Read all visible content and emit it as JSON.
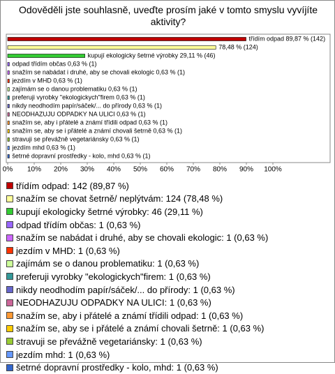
{
  "chart_data": {
    "type": "hbar",
    "title": "Odověděli jste souhlasně, uveďte prosím jaké v tomto smyslu vyvíjíte aktivity?",
    "categories": [
      "třídím odpad",
      "snažím se chovat šetrně/ neplýtvám",
      "kupují ekologicky šetrné výrobky",
      "odpad třídím občas",
      "snažím se nabádat i druhé, aby se chovali ekologic",
      "jezdím v MHD",
      "zajímám se o danou problematiku",
      "preferuji vyrobky \"ekologickych\"firem",
      "nikdy neodhodím papír/sáček/... do přírody",
      "NEODHAZUJU ODPADKY NA ULICI",
      "snažím se, aby i přátelé a známí třídili odpad",
      "snažím se, aby se i přátelé a známí chovali šetrně",
      "stravuji se převážně vegetariánsky",
      "jezdím mhd",
      "šetrné dopravní prostředky - kolo, mhd"
    ],
    "values": [
      89.87,
      78.48,
      29.11,
      0.63,
      0.63,
      0.63,
      0.63,
      0.63,
      0.63,
      0.63,
      0.63,
      0.63,
      0.63,
      0.63,
      0.63
    ],
    "value_labels": [
      "třídím odpad 89,87 % (142)",
      "78,48 % (124)",
      "kupují ekologicky šetrné výrobky 29,11 % (46)",
      "odpad třídím občas 0,63 % (1)",
      "snažím se nabádat i druhé, aby se chovali ekologic 0,63 % (1)",
      "jezdím v MHD 0,63 % (1)",
      "zajímám se o danou problematiku 0,63 % (1)",
      "preferuji vyrobky \"ekologickych\"firem 0,63 % (1)",
      "nikdy neodhodím papír/sáček/... do přírody 0,63 % (1)",
      "NEODHAZUJU ODPADKY NA ULICI 0,63 % (1)",
      "snažím se, aby i přátelé a známí třídili odpad 0,63 % (1)",
      "snažím se, aby se i přátelé a známí chovali šetrně 0,63 % (1)",
      "stravuji se převážně vegetariánsky 0,63 % (1)",
      "jezdím mhd 0,63 % (1)",
      "šetrné dopravní prostředky - kolo, mhd 0,63 % (1)"
    ],
    "legend": [
      "třídím odpad: 142 (89,87 %)",
      "snažím se chovat šetrně/ neplýtvám: 124 (78,48 %)",
      "kupují ekologicky šetrné výrobky: 46 (29,11 %)",
      "odpad třídím občas: 1 (0,63 %)",
      "snažím se nabádat i druhé, aby se chovali ekologic: 1 (0,63 %)",
      "jezdím v MHD: 1 (0,63 %)",
      "zajímám se o danou problematiku: 1 (0,63 %)",
      "preferuji vyrobky \"ekologickych\"firem: 1 (0,63 %)",
      "nikdy neodhodím papír/sáček/... do přírody: 1 (0,63 %)",
      "NEODHAZUJU ODPADKY NA ULICI: 1 (0,63 %)",
      "snažím se, aby i přátelé a známí třídili odpad: 1 (0,63 %)",
      "snažím se, aby se i přátelé a známí chovali šetrně: 1 (0,63 %)",
      "stravuji se převážně vegetariánsky: 1 (0,63 %)",
      "jezdím mhd: 1 (0,63 %)",
      "šetrné dopravní prostředky - kolo, mhd: 1 (0,63 %)"
    ],
    "colors": [
      "#c00000",
      "#ffff99",
      "#33cc33",
      "#9966ff",
      "#cc66ff",
      "#ff3300",
      "#ccff99",
      "#339999",
      "#6666cc",
      "#cc6699",
      "#ff9933",
      "#ffcc00",
      "#99cc33",
      "#6699ff",
      "#3366cc"
    ],
    "xlim": [
      0,
      100
    ],
    "xticks": [
      {
        "value": 0,
        "label": "0%"
      },
      {
        "value": 10,
        "label": "10%"
      },
      {
        "value": 20,
        "label": "20%"
      },
      {
        "value": 30,
        "label": "30%"
      },
      {
        "value": 40,
        "label": "40%"
      },
      {
        "value": 50,
        "label": "50%"
      },
      {
        "value": 60,
        "label": "60%"
      },
      {
        "value": 70,
        "label": "70%"
      },
      {
        "value": 80,
        "label": "80%"
      },
      {
        "value": 90,
        "label": "90%"
      },
      {
        "value": 100,
        "label": "100%"
      }
    ]
  }
}
